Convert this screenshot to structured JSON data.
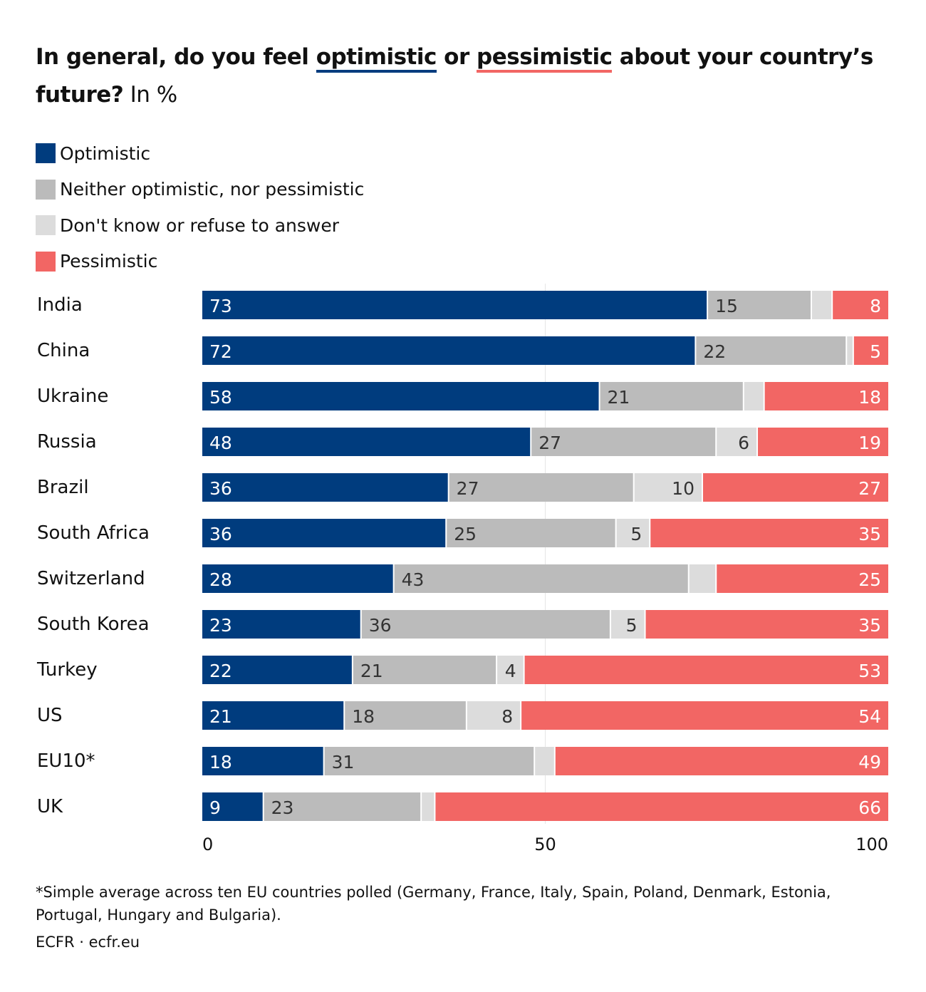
{
  "title": {
    "part1": "In general, do you feel ",
    "optimistic": "optimistic",
    "or": " or ",
    "pessimistic": "pessimistic",
    "part2": " about your country’s future?",
    "unit": " In %"
  },
  "colors": {
    "optimistic": "#003c7e",
    "neither": "#bbbbbb",
    "dont_know": "#dcdcdc",
    "pessimistic": "#f26664"
  },
  "footnote": "*Simple average across ten EU countries polled (Germany, France, Italy, Spain, Poland, Denmark, Estonia, Portugal, Hungary and Bulgaria).",
  "source": "ECFR · ecfr.eu",
  "chart_data": {
    "type": "bar",
    "orientation": "horizontal",
    "stacked": true,
    "categories": [
      "India",
      "China",
      "Ukraine",
      "Russia",
      "Brazil",
      "South Africa",
      "Switzerland",
      "South Korea",
      "Turkey",
      "US",
      "EU10*",
      "UK"
    ],
    "series": [
      {
        "name": "Optimistic",
        "color": "#003c7e",
        "values": [
          73,
          72,
          58,
          48,
          36,
          36,
          28,
          23,
          22,
          21,
          18,
          9
        ]
      },
      {
        "name": "Neither optimistic, nor pessimistic",
        "color": "#bbbbbb",
        "values": [
          15,
          22,
          21,
          27,
          27,
          25,
          43,
          36,
          21,
          18,
          31,
          23
        ]
      },
      {
        "name": "Don't know or refuse to answer",
        "color": "#dcdcdc",
        "values": [
          3,
          1,
          3,
          6,
          10,
          5,
          4,
          5,
          4,
          8,
          3,
          2
        ]
      },
      {
        "name": "Pessimistic",
        "color": "#f26664",
        "values": [
          8,
          5,
          18,
          19,
          27,
          35,
          25,
          35,
          53,
          54,
          49,
          66
        ]
      }
    ],
    "labeled_values": [
      [
        true,
        true,
        false,
        true
      ],
      [
        true,
        true,
        false,
        true
      ],
      [
        true,
        true,
        false,
        true
      ],
      [
        true,
        true,
        true,
        true
      ],
      [
        true,
        true,
        true,
        true
      ],
      [
        true,
        true,
        true,
        true
      ],
      [
        true,
        true,
        false,
        true
      ],
      [
        true,
        true,
        true,
        true
      ],
      [
        true,
        true,
        true,
        true
      ],
      [
        true,
        true,
        true,
        true
      ],
      [
        true,
        true,
        false,
        true
      ],
      [
        true,
        true,
        false,
        true
      ]
    ],
    "xlim": [
      0,
      100
    ],
    "xticks": [
      "0",
      "50",
      "100"
    ],
    "grid": "vertical at 50",
    "legend": "top-left"
  }
}
